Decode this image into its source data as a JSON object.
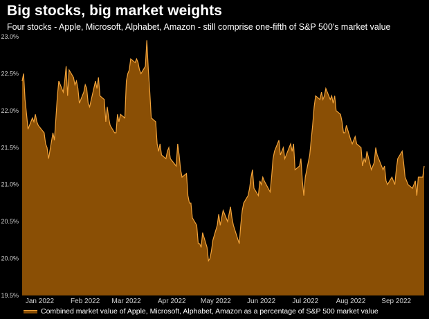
{
  "title": "Big stocks, big market weights",
  "subtitle": "Four stocks - Apple, Microsoft, Alphabet, Amazon - still comprise one-fifth of S&P 500's market value",
  "colors": {
    "background": "#000000",
    "area_fill": "#8a4f05",
    "line": "#f2a33a",
    "axis_text": "#d0d0d0"
  },
  "chart_data": {
    "type": "area",
    "title": "Big stocks, big market weights",
    "subtitle": "Four stocks - Apple, Microsoft, Alphabet, Amazon - still comprise one-fifth of S&P 500's market value",
    "xlabel": "",
    "ylabel": "",
    "x_range": [
      "2022-01-03",
      "2022-10-04"
    ],
    "ylim": [
      19.5,
      23.0
    ],
    "y_ticks": [
      "19.5%",
      "20.0%",
      "20.5%",
      "21.0%",
      "21.5%",
      "22.0%",
      "22.5%",
      "23.0%"
    ],
    "y_tick_values": [
      19.5,
      20.0,
      20.5,
      21.0,
      21.5,
      22.0,
      22.5,
      23.0
    ],
    "x_ticks": [
      {
        "label": "Jan 2022",
        "date": "2022-01-15"
      },
      {
        "label": "Feb 2022",
        "date": "2022-02-15"
      },
      {
        "label": "Mar 2022",
        "date": "2022-03-15"
      },
      {
        "label": "Apr 2022",
        "date": "2022-04-15"
      },
      {
        "label": "May 2022",
        "date": "2022-05-15"
      },
      {
        "label": "Jun 2022",
        "date": "2022-06-15"
      },
      {
        "label": "Jul 2022",
        "date": "2022-07-15"
      },
      {
        "label": "Aug 2022",
        "date": "2022-08-15"
      },
      {
        "label": "Sep 2022",
        "date": "2022-09-15"
      }
    ],
    "legend_position": "bottom",
    "grid": false,
    "series": [
      {
        "name": "Combined market value of Apple, Microsoft, Alphabet, Amazon as a percentage of S&P 500 market value",
        "x": [
          "2022-01-03",
          "2022-01-04",
          "2022-01-05",
          "2022-01-06",
          "2022-01-07",
          "2022-01-10",
          "2022-01-11",
          "2022-01-12",
          "2022-01-13",
          "2022-01-14",
          "2022-01-18",
          "2022-01-19",
          "2022-01-20",
          "2022-01-21",
          "2022-01-24",
          "2022-01-25",
          "2022-01-26",
          "2022-01-27",
          "2022-01-28",
          "2022-01-31",
          "2022-02-01",
          "2022-02-02",
          "2022-02-03",
          "2022-02-04",
          "2022-02-07",
          "2022-02-08",
          "2022-02-09",
          "2022-02-10",
          "2022-02-11",
          "2022-02-14",
          "2022-02-15",
          "2022-02-16",
          "2022-02-17",
          "2022-02-18",
          "2022-02-22",
          "2022-02-23",
          "2022-02-24",
          "2022-02-25",
          "2022-02-28",
          "2022-03-01",
          "2022-03-02",
          "2022-03-03",
          "2022-03-04",
          "2022-03-07",
          "2022-03-08",
          "2022-03-09",
          "2022-03-10",
          "2022-03-11",
          "2022-03-14",
          "2022-03-15",
          "2022-03-16",
          "2022-03-17",
          "2022-03-18",
          "2022-03-21",
          "2022-03-22",
          "2022-03-23",
          "2022-03-24",
          "2022-03-25",
          "2022-03-28",
          "2022-03-29",
          "2022-03-30",
          "2022-03-31",
          "2022-04-01",
          "2022-04-04",
          "2022-04-05",
          "2022-04-06",
          "2022-04-07",
          "2022-04-08",
          "2022-04-11",
          "2022-04-12",
          "2022-04-13",
          "2022-04-14",
          "2022-04-18",
          "2022-04-19",
          "2022-04-20",
          "2022-04-21",
          "2022-04-22",
          "2022-04-25",
          "2022-04-26",
          "2022-04-27",
          "2022-04-28",
          "2022-04-29",
          "2022-05-02",
          "2022-05-03",
          "2022-05-04",
          "2022-05-05",
          "2022-05-06",
          "2022-05-09",
          "2022-05-10",
          "2022-05-11",
          "2022-05-12",
          "2022-05-13",
          "2022-05-16",
          "2022-05-17",
          "2022-05-18",
          "2022-05-19",
          "2022-05-20",
          "2022-05-23",
          "2022-05-24",
          "2022-05-25",
          "2022-05-26",
          "2022-05-27",
          "2022-05-31",
          "2022-06-01",
          "2022-06-02",
          "2022-06-03",
          "2022-06-06",
          "2022-06-07",
          "2022-06-08",
          "2022-06-09",
          "2022-06-10",
          "2022-06-13",
          "2022-06-14",
          "2022-06-15",
          "2022-06-16",
          "2022-06-17",
          "2022-06-21",
          "2022-06-22",
          "2022-06-23",
          "2022-06-24",
          "2022-06-27",
          "2022-06-28",
          "2022-06-29",
          "2022-06-30",
          "2022-07-01",
          "2022-07-05",
          "2022-07-06",
          "2022-07-07",
          "2022-07-08",
          "2022-07-11",
          "2022-07-12",
          "2022-07-13",
          "2022-07-14",
          "2022-07-15",
          "2022-07-18",
          "2022-07-19",
          "2022-07-20",
          "2022-07-21",
          "2022-07-22",
          "2022-07-25",
          "2022-07-26",
          "2022-07-27",
          "2022-07-28",
          "2022-07-29",
          "2022-08-01",
          "2022-08-02",
          "2022-08-03",
          "2022-08-04",
          "2022-08-05",
          "2022-08-08",
          "2022-08-09",
          "2022-08-10",
          "2022-08-11",
          "2022-08-12",
          "2022-08-15",
          "2022-08-16",
          "2022-08-17",
          "2022-08-18",
          "2022-08-19",
          "2022-08-22",
          "2022-08-23",
          "2022-08-24",
          "2022-08-25",
          "2022-08-26",
          "2022-08-29",
          "2022-08-30",
          "2022-08-31",
          "2022-09-01",
          "2022-09-02",
          "2022-09-06",
          "2022-09-07",
          "2022-09-08",
          "2022-09-09",
          "2022-09-12",
          "2022-09-13",
          "2022-09-14",
          "2022-09-15",
          "2022-09-16",
          "2022-09-19",
          "2022-09-20",
          "2022-09-21",
          "2022-09-22",
          "2022-09-23",
          "2022-09-26",
          "2022-09-27",
          "2022-09-28",
          "2022-09-29",
          "2022-09-30",
          "2022-10-03",
          "2022-10-04"
        ],
        "y": [
          22.4,
          22.5,
          22.15,
          21.95,
          21.75,
          21.9,
          21.85,
          21.95,
          21.85,
          21.8,
          21.7,
          21.55,
          21.5,
          21.35,
          21.7,
          21.6,
          21.9,
          22.2,
          22.4,
          22.25,
          22.4,
          22.6,
          22.2,
          22.55,
          22.45,
          22.35,
          22.4,
          22.3,
          22.1,
          22.25,
          22.35,
          22.3,
          22.1,
          22.05,
          22.4,
          22.3,
          22.45,
          22.2,
          22.15,
          21.85,
          22.05,
          21.9,
          21.8,
          21.7,
          21.7,
          21.95,
          21.85,
          21.95,
          21.9,
          22.4,
          22.5,
          22.55,
          22.7,
          22.65,
          22.7,
          22.65,
          22.55,
          22.5,
          22.6,
          22.95,
          22.55,
          22.25,
          21.9,
          21.85,
          21.55,
          21.45,
          21.55,
          21.4,
          21.35,
          21.45,
          21.5,
          21.35,
          21.25,
          21.55,
          21.4,
          21.2,
          21.1,
          21.15,
          20.85,
          20.75,
          20.75,
          20.55,
          20.45,
          20.2,
          20.2,
          20.15,
          20.35,
          20.15,
          19.97,
          20.0,
          20.1,
          20.25,
          20.45,
          20.6,
          20.45,
          20.55,
          20.65,
          20.5,
          20.6,
          20.7,
          20.55,
          20.45,
          20.2,
          20.45,
          20.65,
          20.75,
          20.85,
          20.95,
          21.1,
          21.2,
          20.95,
          20.85,
          21.05,
          21.0,
          21.1,
          21.05,
          20.9,
          21.1,
          21.35,
          21.45,
          21.6,
          21.4,
          21.45,
          21.5,
          21.35,
          21.55,
          21.45,
          21.55,
          21.2,
          21.25,
          21.35,
          21.05,
          20.85,
          21.1,
          21.4,
          21.6,
          21.8,
          22.05,
          22.2,
          22.15,
          22.25,
          22.15,
          22.2,
          22.3,
          22.15,
          22.2,
          22.1,
          22.2,
          22.0,
          21.95,
          21.85,
          21.7,
          21.7,
          21.8,
          21.6,
          21.55,
          21.6,
          21.65,
          21.55,
          21.5,
          21.25,
          21.35,
          21.3,
          21.45,
          21.2,
          21.25,
          21.3,
          21.5,
          21.4,
          21.2,
          21.25,
          21.05,
          21.0,
          21.1,
          21.05,
          21.0,
          21.2,
          21.35,
          21.45,
          21.3,
          21.1,
          21.05,
          21.0,
          20.95,
          21.0,
          21.05,
          20.85,
          21.1,
          21.1,
          21.25
        ]
      }
    ]
  },
  "legend": {
    "label": "Combined market value of Apple, Microsoft, Alphabet, Amazon as a percentage of S&P 500 market value"
  }
}
